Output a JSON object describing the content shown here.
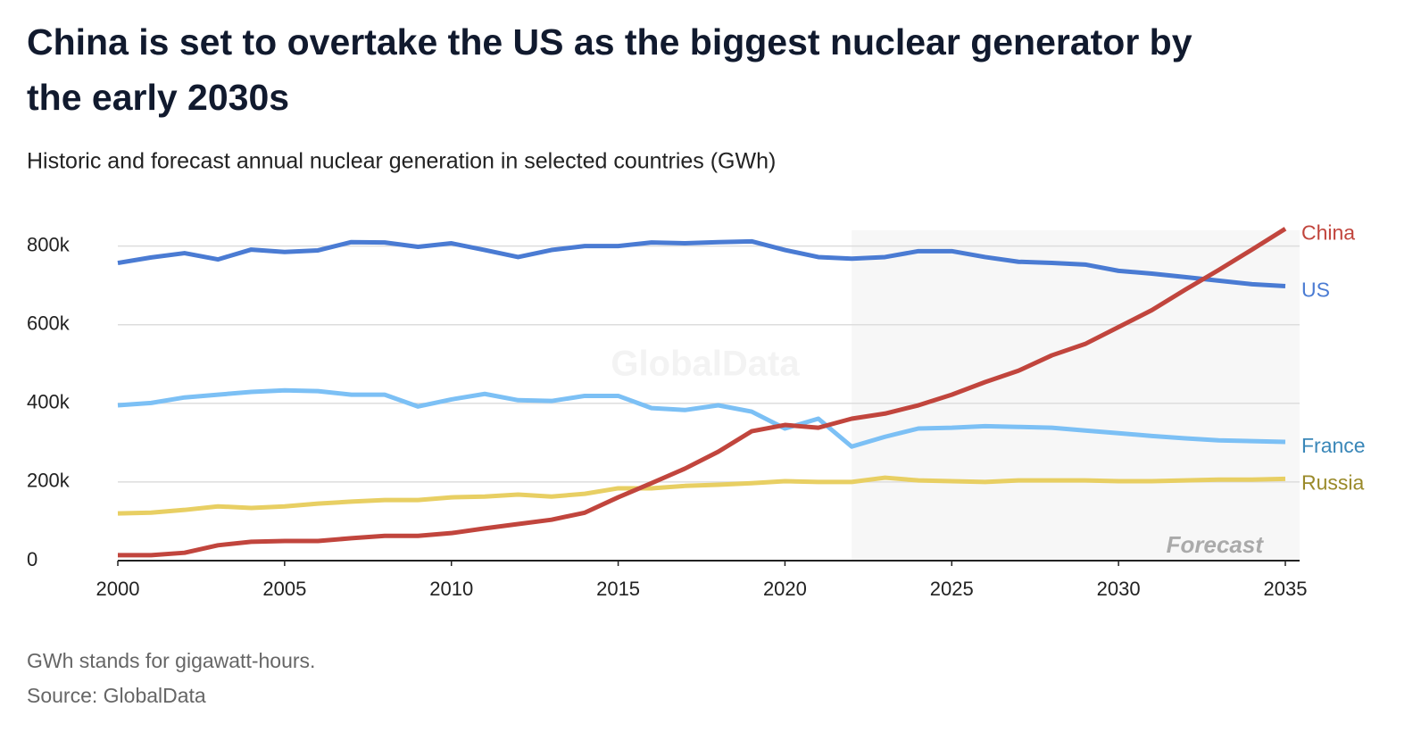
{
  "chart_data": {
    "type": "line",
    "title": "China is set to overtake the US as the biggest nuclear generator by the early 2030s",
    "subtitle": "Historic and forecast annual nuclear generation in selected countries (GWh)",
    "notes": [
      "GWh stands for gigawatt-hours.",
      "Source: GlobalData"
    ],
    "watermark": "GlobalData",
    "forecast_label": "Forecast",
    "forecast_start": 2022,
    "x": [
      2000,
      2001,
      2002,
      2003,
      2004,
      2005,
      2006,
      2007,
      2008,
      2009,
      2010,
      2011,
      2012,
      2013,
      2014,
      2015,
      2016,
      2017,
      2018,
      2019,
      2020,
      2021,
      2022,
      2023,
      2024,
      2025,
      2026,
      2027,
      2028,
      2029,
      2030,
      2031,
      2032,
      2033,
      2034,
      2035
    ],
    "series": [
      {
        "name": "US",
        "color": "#4a7bd3",
        "label_color": "#4a7bd3",
        "values": [
          757000,
          771000,
          782000,
          766000,
          791000,
          785000,
          789000,
          810000,
          809000,
          798000,
          807000,
          790000,
          772000,
          790000,
          800000,
          800000,
          809000,
          807000,
          810000,
          812000,
          790000,
          772000,
          768000,
          772000,
          787000,
          787000,
          772000,
          760000,
          757000,
          753000,
          737000,
          730000,
          721000,
          712000,
          703000,
          698000
        ]
      },
      {
        "name": "France",
        "color": "#7cc0f5",
        "label_color": "#3a87b8",
        "values": [
          395000,
          401000,
          415000,
          422000,
          429000,
          433000,
          431000,
          422000,
          422000,
          392000,
          410000,
          424000,
          408000,
          406000,
          419000,
          419000,
          388000,
          383000,
          395000,
          379000,
          336000,
          361000,
          290000,
          315000,
          336000,
          338000,
          342000,
          340000,
          338000,
          331000,
          324000,
          317000,
          311000,
          306000,
          304000,
          302000
        ]
      },
      {
        "name": "Russia",
        "color": "#e8cf63",
        "label_color": "#9a8a2a",
        "values": [
          120000,
          122000,
          129000,
          138000,
          134000,
          138000,
          145000,
          150000,
          154000,
          154000,
          161000,
          163000,
          168000,
          163000,
          170000,
          184000,
          184000,
          190000,
          193000,
          197000,
          202000,
          200000,
          200000,
          211000,
          204000,
          202000,
          200000,
          204000,
          204000,
          204000,
          202000,
          202000,
          204000,
          206000,
          206000,
          208000
        ]
      },
      {
        "name": "China",
        "color": "#c1453d",
        "label_color": "#c1453d",
        "values": [
          14000,
          14000,
          20000,
          39000,
          48000,
          50000,
          50000,
          57000,
          63000,
          63000,
          70000,
          82000,
          93000,
          104000,
          122000,
          161000,
          197000,
          234000,
          277000,
          329000,
          345000,
          338000,
          361000,
          374000,
          395000,
          422000,
          454000,
          483000,
          522000,
          551000,
          594000,
          637000,
          689000,
          739000,
          791000,
          844000
        ]
      }
    ],
    "xlim": [
      2000,
      2035
    ],
    "xticks": [
      2000,
      2005,
      2010,
      2015,
      2020,
      2025,
      2030,
      2035
    ],
    "ylim": [
      0,
      840000
    ],
    "yticks": [
      0,
      {
        "value": 200000,
        "label": "200k"
      },
      {
        "value": 400000,
        "label": "400k"
      },
      {
        "value": 600000,
        "label": "600k"
      },
      {
        "value": 800000,
        "label": "800k"
      }
    ],
    "grid": true
  }
}
